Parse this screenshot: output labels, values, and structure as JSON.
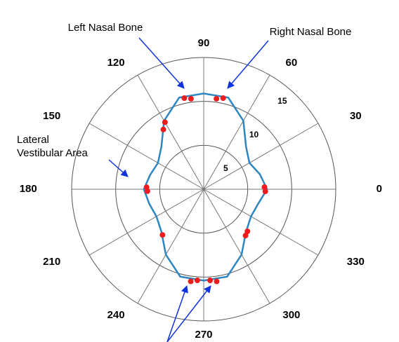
{
  "chart_data": {
    "type": "polar",
    "thetaticks": [
      0,
      30,
      60,
      90,
      120,
      150,
      180,
      210,
      240,
      270,
      300,
      330
    ],
    "rlim": [
      0,
      15
    ],
    "rticks": [
      5,
      10,
      15
    ],
    "series": [
      {
        "kind": "line",
        "color": "#2e86c1",
        "theta": [
          0,
          15,
          30,
          45,
          60,
          75,
          90,
          105,
          120,
          135,
          150,
          165,
          180,
          195,
          210,
          225,
          240,
          255,
          270,
          285,
          300,
          315,
          330,
          345,
          360
        ],
        "r": [
          7.2,
          6.6,
          6.0,
          6.8,
          9.0,
          10.8,
          10.9,
          10.8,
          9.0,
          6.8,
          6.0,
          6.3,
          6.8,
          6.4,
          6.2,
          6.8,
          8.6,
          10.3,
          10.4,
          10.3,
          8.6,
          6.8,
          6.2,
          6.4,
          7.2
        ]
      },
      {
        "kind": "scatter",
        "color": "#ee1c1c",
        "theta": [
          78,
          82,
          98,
          102,
          120,
          124,
          178,
          182,
          358,
          2,
          312,
          316,
          228,
          262,
          266,
          274,
          278
        ],
        "r": [
          10.6,
          10.4,
          10.4,
          10.6,
          8.8,
          8.2,
          6.5,
          6.4,
          7.0,
          6.9,
          7.1,
          6.9,
          7.0,
          10.6,
          10.4,
          10.4,
          10.6
        ]
      }
    ],
    "annotations": [
      "Left Nasal Bone",
      "Right Nasal Bone",
      "Lateral",
      "Vestibular Area"
    ]
  }
}
